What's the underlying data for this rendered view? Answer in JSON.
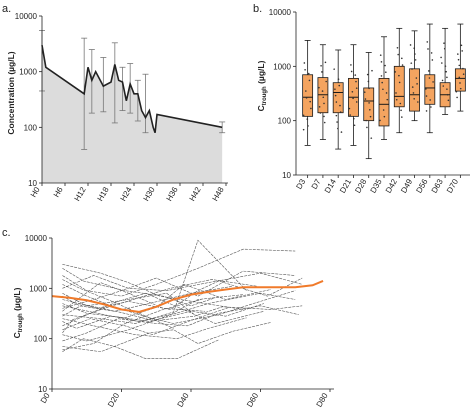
{
  "colors": {
    "box_fill": "#f4a460",
    "box_stroke": "#1a1a1a",
    "line_dark": "#222222",
    "area_fill": "#dcdcdc",
    "spaghetti": "#555555",
    "median_orange": "#f07a2a"
  },
  "chart_data": [
    {
      "panel": "a.",
      "type": "area",
      "title": "",
      "xlabel": "",
      "ylabel": "Concentration (µg/L)",
      "yscale": "log",
      "ylim": [
        10,
        10000
      ],
      "yticks": [
        "10",
        "100",
        "1000",
        "10000"
      ],
      "xlim": [
        0,
        48
      ],
      "xticks": [
        {
          "label": "H0",
          "value": 0
        },
        {
          "label": "H6",
          "value": 6
        },
        {
          "label": "H12",
          "value": 12
        },
        {
          "label": "H18",
          "value": 18
        },
        {
          "label": "H24",
          "value": 24
        },
        {
          "label": "H30",
          "value": 30
        },
        {
          "label": "H36",
          "value": 36
        },
        {
          "label": "H42",
          "value": 42
        },
        {
          "label": "H48",
          "value": 48
        }
      ],
      "points": [
        {
          "x": 0,
          "y": 3000,
          "lo": 450,
          "hi": 5500
        },
        {
          "x": 1,
          "y": 1200,
          "lo": null,
          "hi": null
        },
        {
          "x": 11,
          "y": 400,
          "lo": 40,
          "hi": 4000
        },
        {
          "x": 12,
          "y": 1200,
          "lo": null,
          "hi": null
        },
        {
          "x": 13,
          "y": 700,
          "lo": 180,
          "hi": 2500
        },
        {
          "x": 14,
          "y": 1000,
          "lo": null,
          "hi": null
        },
        {
          "x": 16,
          "y": 550,
          "lo": 190,
          "hi": 1800
        },
        {
          "x": 18,
          "y": 650,
          "lo": null,
          "hi": null
        },
        {
          "x": 19,
          "y": 1350,
          "lo": 120,
          "hi": 3300
        },
        {
          "x": 20,
          "y": 700,
          "lo": null,
          "hi": null
        },
        {
          "x": 21,
          "y": 650,
          "lo": 200,
          "hi": 1200
        },
        {
          "x": 22,
          "y": 300,
          "lo": null,
          "hi": null
        },
        {
          "x": 23,
          "y": 600,
          "lo": 180,
          "hi": 1400
        },
        {
          "x": 24,
          "y": 400,
          "lo": null,
          "hi": null
        },
        {
          "x": 25,
          "y": 400,
          "lo": 130,
          "hi": 700
        },
        {
          "x": 26,
          "y": 200,
          "lo": null,
          "hi": null
        },
        {
          "x": 27,
          "y": 150,
          "lo": 80,
          "hi": 900
        },
        {
          "x": 28,
          "y": 200,
          "lo": null,
          "hi": null
        },
        {
          "x": 29,
          "y": 100,
          "lo": null,
          "hi": null
        },
        {
          "x": 29.5,
          "y": 80,
          "lo": null,
          "hi": null
        },
        {
          "x": 30,
          "y": 170,
          "lo": null,
          "hi": null
        },
        {
          "x": 47,
          "y": 100,
          "lo": 80,
          "hi": 125
        }
      ],
      "fill_color": "#dcdcdc"
    },
    {
      "panel": "b.",
      "type": "box",
      "title": "",
      "xlabel": "",
      "ylabel": "C",
      "ylabel_sub": "trough",
      "ylabel_unit": " (µg/L)",
      "yscale": "log",
      "ylim": [
        10,
        10000
      ],
      "yticks": [
        "10",
        "100",
        "1000",
        "10000"
      ],
      "categories": [
        "D3",
        "D7",
        "D14",
        "D21",
        "D28",
        "D35",
        "D42",
        "D49",
        "D56",
        "D63",
        "D70"
      ],
      "boxes": [
        {
          "min": 35,
          "q1": 120,
          "median": 270,
          "q3": 700,
          "max": 3000
        },
        {
          "min": 45,
          "q1": 140,
          "median": 300,
          "q3": 620,
          "max": 2500
        },
        {
          "min": 30,
          "q1": 140,
          "median": 330,
          "q3": 500,
          "max": 2000
        },
        {
          "min": 35,
          "q1": 120,
          "median": 270,
          "q3": 600,
          "max": 2500
        },
        {
          "min": 20,
          "q1": 100,
          "median": 230,
          "q3": 400,
          "max": 1800
        },
        {
          "min": 45,
          "q1": 80,
          "median": 200,
          "q3": 600,
          "max": 3500
        },
        {
          "min": 60,
          "q1": 180,
          "median": 280,
          "q3": 1000,
          "max": 5000
        },
        {
          "min": 100,
          "q1": 150,
          "median": 300,
          "q3": 900,
          "max": 4500
        },
        {
          "min": 60,
          "q1": 200,
          "median": 400,
          "q3": 700,
          "max": 6000
        },
        {
          "min": 130,
          "q1": 180,
          "median": 300,
          "q3": 500,
          "max": 5000
        },
        {
          "min": 150,
          "q1": 350,
          "median": 600,
          "q3": 900,
          "max": 6000
        }
      ],
      "fill_color": "#f4a460"
    },
    {
      "panel": "c.",
      "type": "line",
      "title": "",
      "xlabel": "",
      "ylabel": "C",
      "ylabel_sub": "trough",
      "ylabel_unit": " (µg/L)",
      "yscale": "log",
      "ylim": [
        10,
        10000
      ],
      "yticks": [
        "10",
        "100",
        "1000",
        "10000"
      ],
      "xlim": [
        0,
        80
      ],
      "xticks": [
        {
          "label": "D0",
          "value": 0
        },
        {
          "label": "D20",
          "value": 20
        },
        {
          "label": "D40",
          "value": 40
        },
        {
          "label": "D60",
          "value": 60
        },
        {
          "label": "D80",
          "value": 80
        }
      ],
      "individual_series": [
        {
          "x": [
            3,
            10,
            20,
            30,
            42,
            55,
            70
          ],
          "y": [
            1800,
            900,
            700,
            1200,
            2500,
            6000,
            5500
          ]
        },
        {
          "x": [
            3,
            12,
            22,
            33,
            45,
            60,
            72
          ],
          "y": [
            1000,
            1800,
            1000,
            900,
            1300,
            2000,
            1200
          ]
        },
        {
          "x": [
            3,
            8,
            18,
            28,
            40,
            52
          ],
          "y": [
            700,
            450,
            350,
            500,
            800,
            1100
          ]
        },
        {
          "x": [
            3,
            10,
            21,
            30,
            38,
            50,
            63
          ],
          "y": [
            500,
            320,
            260,
            420,
            1200,
            600,
            950
          ]
        },
        {
          "x": [
            3,
            14,
            24,
            35,
            42,
            56
          ],
          "y": [
            300,
            250,
            200,
            340,
            9000,
            900
          ]
        },
        {
          "x": [
            3,
            7,
            17,
            28,
            41,
            49,
            63,
            72
          ],
          "y": [
            220,
            160,
            280,
            220,
            280,
            430,
            380,
            450
          ]
        },
        {
          "x": [
            3,
            11,
            21,
            29,
            40,
            51
          ],
          "y": [
            150,
            250,
            180,
            120,
            230,
            420
          ]
        },
        {
          "x": [
            3,
            10,
            19,
            30,
            39,
            48,
            60,
            71
          ],
          "y": [
            90,
            130,
            250,
            200,
            180,
            320,
            450,
            300
          ]
        },
        {
          "x": [
            3,
            14,
            28,
            35,
            42,
            52,
            63
          ],
          "y": [
            70,
            55,
            130,
            150,
            80,
            140,
            210
          ]
        },
        {
          "x": [
            3,
            9,
            18,
            27,
            36,
            48
          ],
          "y": [
            55,
            100,
            70,
            40,
            40,
            95
          ]
        },
        {
          "x": [
            3,
            12,
            20,
            30,
            42,
            55,
            70
          ],
          "y": [
            400,
            600,
            900,
            1600,
            700,
            2200,
            1800
          ]
        },
        {
          "x": [
            3,
            9,
            21,
            32,
            40,
            47
          ],
          "y": [
            2500,
            1400,
            900,
            700,
            450,
            650
          ]
        },
        {
          "x": [
            3,
            10,
            17,
            28,
            35,
            48,
            58,
            70
          ],
          "y": [
            1200,
            700,
            450,
            260,
            200,
            300,
            500,
            900
          ]
        },
        {
          "x": [
            3,
            8,
            14,
            22,
            32,
            44
          ],
          "y": [
            350,
            650,
            1300,
            800,
            400,
            350
          ]
        },
        {
          "x": [
            3,
            12,
            24,
            36,
            45,
            56
          ],
          "y": [
            250,
            180,
            120,
            100,
            160,
            260
          ]
        },
        {
          "x": [
            3,
            6,
            15,
            25,
            34,
            46,
            59
          ],
          "y": [
            130,
            240,
            400,
            650,
            1000,
            1500,
            1100
          ]
        },
        {
          "x": [
            3,
            13,
            22,
            34,
            42,
            48,
            62,
            72
          ],
          "y": [
            600,
            400,
            550,
            380,
            900,
            1400,
            700,
            1600
          ]
        },
        {
          "x": [
            3,
            10,
            22,
            33,
            41
          ],
          "y": [
            800,
            450,
            600,
            800,
            300
          ]
        },
        {
          "x": [
            3,
            11,
            19,
            27,
            37,
            47,
            61
          ],
          "y": [
            180,
            320,
            550,
            800,
            400,
            200,
            350
          ]
        },
        {
          "x": [
            3,
            15,
            25,
            34,
            42,
            55
          ],
          "y": [
            450,
            300,
            220,
            300,
            600,
            750
          ]
        },
        {
          "x": [
            3,
            10,
            22,
            33,
            45,
            60,
            70
          ],
          "y": [
            120,
            90,
            150,
            280,
            500,
            800,
            600
          ]
        },
        {
          "x": [
            3,
            8,
            16,
            26,
            35
          ],
          "y": [
            1500,
            1000,
            600,
            300,
            160
          ]
        },
        {
          "x": [
            3,
            14,
            22,
            31,
            44,
            55
          ],
          "y": [
            3000,
            2000,
            1300,
            700,
            500,
            380
          ]
        },
        {
          "x": [
            3,
            9,
            20,
            29,
            40,
            50,
            61
          ],
          "y": [
            280,
            480,
            330,
            230,
            350,
            280,
            500
          ]
        },
        {
          "x": [
            3,
            12,
            21,
            32,
            43
          ],
          "y": [
            60,
            80,
            200,
            380,
            600
          ]
        }
      ],
      "median_series": {
        "x": [
          0,
          5,
          10,
          15,
          20,
          25,
          30,
          35,
          40,
          45,
          50,
          55,
          60,
          65,
          70,
          75,
          78
        ],
        "y": [
          700,
          650,
          580,
          480,
          380,
          340,
          430,
          600,
          750,
          850,
          950,
          1050,
          1050,
          1050,
          1050,
          1150,
          1400
        ]
      }
    }
  ]
}
